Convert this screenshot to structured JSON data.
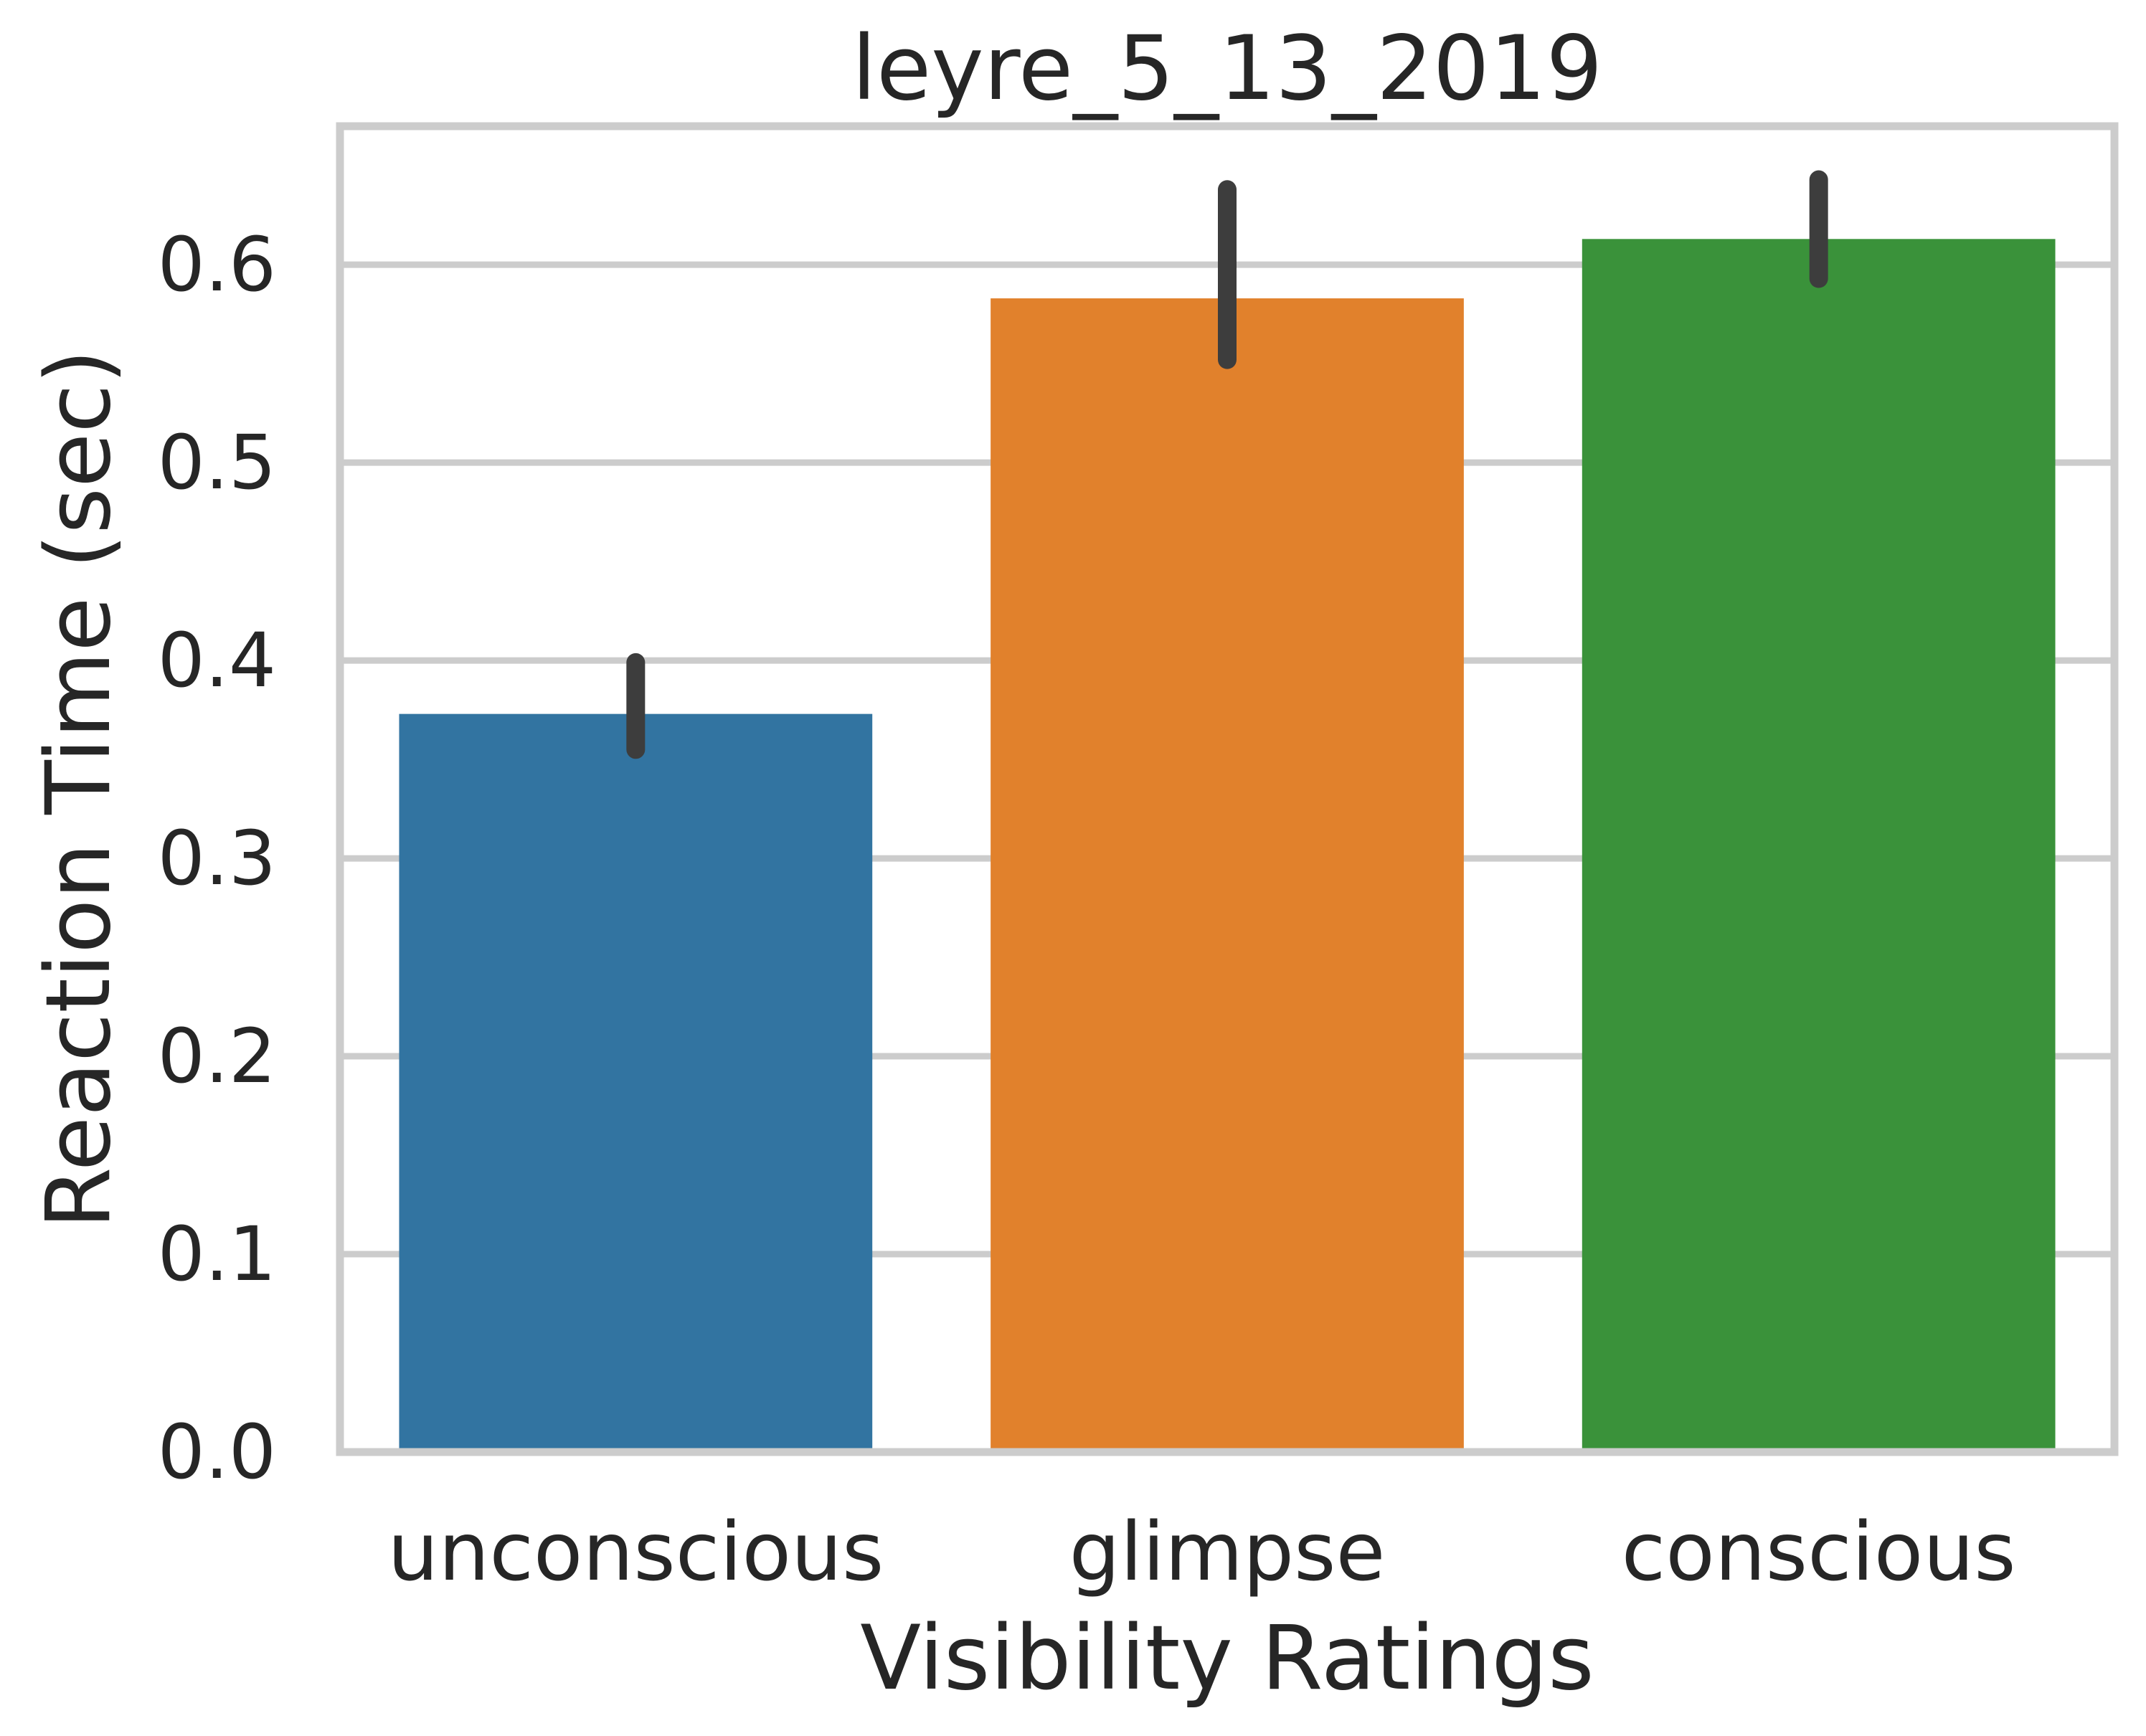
{
  "chart_data": {
    "type": "bar",
    "title": "leyre_5_13_2019",
    "xlabel": "Visibility Ratings",
    "ylabel": "Reaction Time (sec)",
    "categories": [
      "unconscious",
      "glimpse",
      "conscious"
    ],
    "values": [
      0.373,
      0.583,
      0.613
    ],
    "error_bars": [
      {
        "low": 0.355,
        "high": 0.399
      },
      {
        "low": 0.552,
        "high": 0.638
      },
      {
        "low": 0.593,
        "high": 0.643
      }
    ],
    "colors": [
      "#3274a1",
      "#e1812c",
      "#3a923a"
    ],
    "error_color": "#3d3d3d",
    "ylim": [
      0,
      0.67
    ],
    "yticks": [
      0.0,
      0.1,
      0.2,
      0.3,
      0.4,
      0.5,
      0.6
    ],
    "ytick_labels": [
      "0.0",
      "0.1",
      "0.2",
      "0.3",
      "0.4",
      "0.5",
      "0.6"
    ],
    "grid": "horizontal",
    "frame_color": "#cccccc",
    "grid_color": "#cccccc"
  }
}
